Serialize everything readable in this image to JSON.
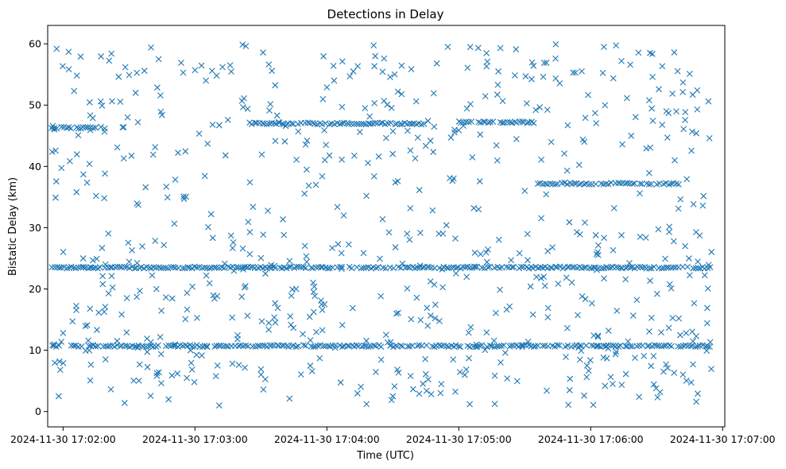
{
  "chart_data": {
    "type": "scatter",
    "title": "Detections in Delay",
    "xlabel": "Time (UTC)",
    "ylabel": "Bistatic Delay (km)",
    "marker": "x",
    "color": "#1f77b4",
    "grid": false,
    "legend": "none",
    "xlim": [
      "2024-11-30 17:01:53",
      "2024-11-30 17:07:01"
    ],
    "ylim": [
      -2.5,
      63
    ],
    "x_ticks": [
      "2024-11-30 17:02:00",
      "2024-11-30 17:03:00",
      "2024-11-30 17:04:00",
      "2024-11-30 17:05:00",
      "2024-11-30 17:06:00",
      "2024-11-30 17:07:00"
    ],
    "y_ticks": [
      0,
      10,
      20,
      30,
      40,
      50,
      60
    ],
    "x_start": "2024-11-30 17:01:55",
    "x_end": "2024-11-30 17:06:55",
    "persistent_tracks": [
      {
        "delay": 23.5,
        "from": "2024-11-30 17:01:55",
        "to": "2024-11-30 17:06:55"
      },
      {
        "delay": 10.7,
        "from": "2024-11-30 17:01:55",
        "to": "2024-11-30 17:06:55"
      },
      {
        "delay": 46.3,
        "from": "2024-11-30 17:01:55",
        "to": "2024-11-30 17:02:20"
      },
      {
        "delay": 47.0,
        "from": "2024-11-30 17:03:25",
        "to": "2024-11-30 17:04:45"
      },
      {
        "delay": 47.2,
        "from": "2024-11-30 17:05:00",
        "to": "2024-11-30 17:05:35"
      },
      {
        "delay": 37.2,
        "from": "2024-11-30 17:05:35",
        "to": "2024-11-30 17:06:40"
      }
    ],
    "scatter_points": [
      [
        "2024-11-30 17:01:58",
        2.5
      ],
      [
        "2024-11-30 17:02:00",
        12.8
      ],
      [
        "2024-11-30 17:02:05",
        52.3
      ],
      [
        "2024-11-30 17:02:08",
        57.9
      ],
      [
        "2024-11-30 17:02:12",
        40.4
      ],
      [
        "2024-11-30 17:02:15",
        35.2
      ],
      [
        "2024-11-30 17:02:18",
        22.1
      ],
      [
        "2024-11-30 17:02:22",
        58.4
      ],
      [
        "2024-11-30 17:02:28",
        1.4
      ],
      [
        "2024-11-30 17:02:33",
        52.0
      ],
      [
        "2024-11-30 17:02:37",
        55.6
      ],
      [
        "2024-11-30 17:02:40",
        59.4
      ],
      [
        "2024-11-30 17:02:45",
        48.4
      ],
      [
        "2024-11-30 17:02:48",
        2.0
      ],
      [
        "2024-11-30 17:02:52",
        6.2
      ],
      [
        "2024-11-30 17:02:55",
        34.7
      ],
      [
        "2024-11-30 17:03:00",
        55.7
      ],
      [
        "2024-11-30 17:03:05",
        54.0
      ],
      [
        "2024-11-30 17:03:08",
        46.8
      ],
      [
        "2024-11-30 17:03:11",
        1.0
      ],
      [
        "2024-11-30 17:03:16",
        56.5
      ],
      [
        "2024-11-30 17:03:20",
        7.6
      ],
      [
        "2024-11-30 17:03:25",
        37.4
      ],
      [
        "2024-11-30 17:03:30",
        6.9
      ],
      [
        "2024-11-30 17:03:35",
        55.6
      ],
      [
        "2024-11-30 17:03:38",
        47.2
      ],
      [
        "2024-11-30 17:03:43",
        2.1
      ],
      [
        "2024-11-30 17:03:46",
        20.0
      ],
      [
        "2024-11-30 17:03:51",
        44.2
      ],
      [
        "2024-11-30 17:03:55",
        37.0
      ],
      [
        "2024-11-30 17:04:00",
        52.9
      ],
      [
        "2024-11-30 17:04:03",
        56.4
      ],
      [
        "2024-11-30 17:04:07",
        14.1
      ],
      [
        "2024-11-30 17:04:12",
        55.5
      ],
      [
        "2024-11-30 17:04:15",
        45.6
      ],
      [
        "2024-11-30 17:04:18",
        35.2
      ],
      [
        "2024-11-30 17:04:22",
        58.0
      ],
      [
        "2024-11-30 17:04:26",
        57.6
      ],
      [
        "2024-11-30 17:04:30",
        2.5
      ],
      [
        "2024-11-30 17:04:34",
        51.8
      ],
      [
        "2024-11-30 17:04:38",
        42.6
      ],
      [
        "2024-11-30 17:04:42",
        2.9
      ],
      [
        "2024-11-30 17:04:45",
        6.1
      ],
      [
        "2024-11-30 17:04:50",
        56.8
      ],
      [
        "2024-11-30 17:04:55",
        59.5
      ],
      [
        "2024-11-30 17:05:00",
        45.9
      ],
      [
        "2024-11-30 17:05:05",
        1.2
      ],
      [
        "2024-11-30 17:05:09",
        33.0
      ],
      [
        "2024-11-30 17:05:13",
        57.1
      ],
      [
        "2024-11-30 17:05:18",
        55.5
      ],
      [
        "2024-11-30 17:05:22",
        5.4
      ],
      [
        "2024-11-30 17:05:26",
        59.1
      ],
      [
        "2024-11-30 17:05:30",
        36.0
      ],
      [
        "2024-11-30 17:05:35",
        49.2
      ],
      [
        "2024-11-30 17:05:40",
        3.4
      ],
      [
        "2024-11-30 17:05:44",
        57.6
      ],
      [
        "2024-11-30 17:05:48",
        42.1
      ],
      [
        "2024-11-30 17:05:52",
        55.3
      ],
      [
        "2024-11-30 17:05:57",
        2.6
      ],
      [
        "2024-11-30 17:06:02",
        48.7
      ],
      [
        "2024-11-30 17:06:06",
        59.5
      ],
      [
        "2024-11-30 17:06:10",
        4.5
      ],
      [
        "2024-11-30 17:06:14",
        57.2
      ],
      [
        "2024-11-30 17:06:18",
        56.6
      ],
      [
        "2024-11-30 17:06:22",
        2.4
      ],
      [
        "2024-11-30 17:06:27",
        58.5
      ],
      [
        "2024-11-30 17:06:31",
        52.6
      ],
      [
        "2024-11-30 17:06:35",
        7.1
      ],
      [
        "2024-11-30 17:06:38",
        58.6
      ],
      [
        "2024-11-30 17:06:42",
        53.7
      ],
      [
        "2024-11-30 17:06:45",
        55.1
      ],
      [
        "2024-11-30 17:06:48",
        1.6
      ],
      [
        "2024-11-30 17:06:51",
        33.6
      ],
      [
        "2024-11-30 17:06:53",
        16.9
      ],
      [
        "2024-11-30 17:06:54",
        44.6
      ]
    ]
  }
}
